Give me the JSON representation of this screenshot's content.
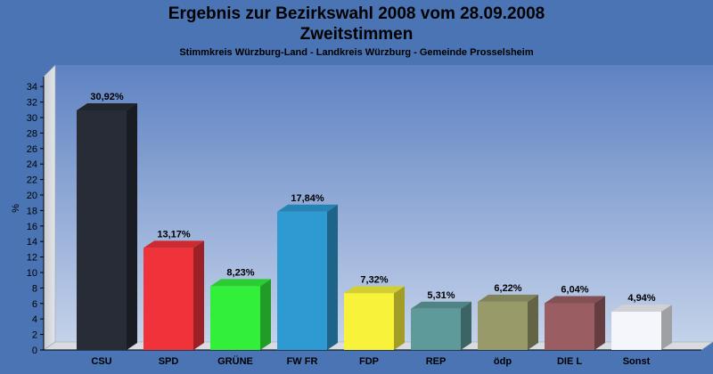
{
  "title": "Ergebnis zur Bezirkswahl 2008 vom 28.09.2008",
  "subtitle": "Zweitstimmen",
  "caption": "Stimmkreis Würzburg-Land - Landkreis Würzburg - Gemeinde Prosselsheim",
  "colors": {
    "background": "#4a74b4",
    "plot_top": "#5e82c2",
    "plot_bottom": "#c4d2ea"
  },
  "chart_data": {
    "type": "bar",
    "title": "Ergebnis zur Bezirkswahl 2008 vom 28.09.2008",
    "subtitle": "Zweitstimmen",
    "ylabel": "%",
    "xlabel": "",
    "ylim": [
      0,
      35
    ],
    "yticks": [
      0,
      2,
      4,
      6,
      8,
      10,
      12,
      14,
      16,
      18,
      20,
      22,
      24,
      26,
      28,
      30,
      32,
      34
    ],
    "grid": false,
    "categories": [
      "CSU",
      "SPD",
      "GRÜNE",
      "FW FR",
      "FDP",
      "REP",
      "ödp",
      "DIE L",
      "Sonst"
    ],
    "values": [
      30.92,
      13.17,
      8.23,
      17.84,
      7.32,
      5.31,
      6.22,
      6.04,
      4.94
    ],
    "labels": [
      "30,92%",
      "13,17%",
      "8,23%",
      "17,84%",
      "7,32%",
      "5,31%",
      "6,22%",
      "6,04%",
      "4,94%"
    ],
    "colors": [
      "#272c36",
      "#f0323a",
      "#32f03a",
      "#2e9ad2",
      "#f8f23a",
      "#5e9a9a",
      "#989a6a",
      "#9a5e62",
      "#f4f6fc"
    ]
  }
}
